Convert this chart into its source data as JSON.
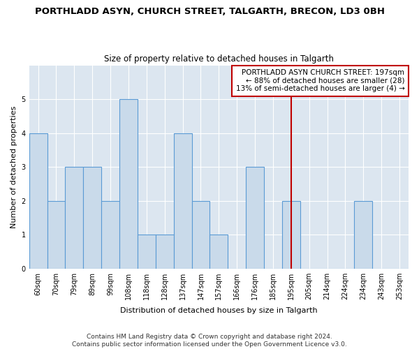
{
  "title": "PORTHLADD ASYN, CHURCH STREET, TALGARTH, BRECON, LD3 0BH",
  "subtitle": "Size of property relative to detached houses in Talgarth",
  "xlabel": "Distribution of detached houses by size in Talgarth",
  "ylabel": "Number of detached properties",
  "categories": [
    "60sqm",
    "70sqm",
    "79sqm",
    "89sqm",
    "99sqm",
    "108sqm",
    "118sqm",
    "128sqm",
    "137sqm",
    "147sqm",
    "157sqm",
    "166sqm",
    "176sqm",
    "185sqm",
    "195sqm",
    "205sqm",
    "214sqm",
    "224sqm",
    "234sqm",
    "243sqm",
    "253sqm"
  ],
  "values": [
    4,
    2,
    3,
    3,
    2,
    5,
    1,
    1,
    4,
    2,
    1,
    0,
    3,
    0,
    2,
    0,
    0,
    0,
    2,
    0,
    0
  ],
  "bar_color": "#c9daea",
  "bar_edge_color": "#5b9bd5",
  "vline_index": 14,
  "vline_color": "#c00000",
  "ylim": [
    0,
    6
  ],
  "yticks": [
    0,
    1,
    2,
    3,
    4,
    5,
    6
  ],
  "legend_text_line1": "PORTHLADD ASYN CHURCH STREET: 197sqm",
  "legend_text_line2": "← 88% of detached houses are smaller (28)",
  "legend_text_line3": "13% of semi-detached houses are larger (4) →",
  "legend_box_color": "#ffffff",
  "legend_box_edge_color": "#c00000",
  "footer_line1": "Contains HM Land Registry data © Crown copyright and database right 2024.",
  "footer_line2": "Contains public sector information licensed under the Open Government Licence v3.0.",
  "figure_bg": "#ffffff",
  "plot_bg": "#dce6f0",
  "grid_color": "#ffffff",
  "title_fontsize": 9.5,
  "subtitle_fontsize": 8.5,
  "axis_label_fontsize": 8,
  "tick_fontsize": 7,
  "legend_fontsize": 7.5,
  "footer_fontsize": 6.5
}
